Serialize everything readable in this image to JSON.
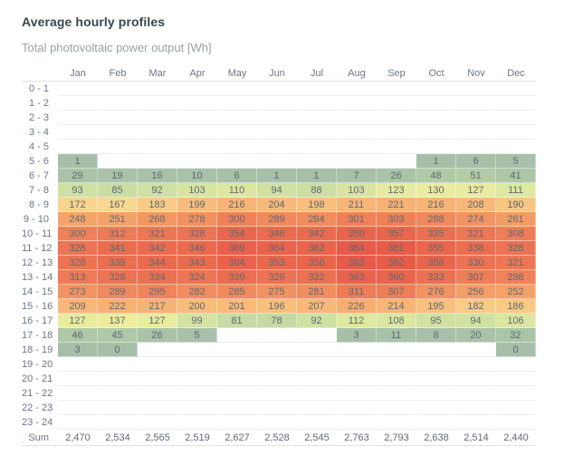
{
  "header": {
    "title": "Average hourly profiles",
    "subtitle": "Total photovoltaic power output [Wh]"
  },
  "colors": {
    "title_text": "#37474f",
    "subtitle_text": "#9aa0a6",
    "axis_text": "#6b7685",
    "cell_text": "#5c6771",
    "gridline": "#ededed",
    "header_line": "#e2e2e2",
    "heat_low": "#a7bfa9",
    "heat_mid": "#eeee9d",
    "heat_high": "#e75a49"
  },
  "chart_data": {
    "type": "heatmap",
    "title": "Average hourly profiles",
    "subtitle": "Total photovoltaic power output [Wh]",
    "unit": "Wh",
    "legend_position": "none",
    "grid": true,
    "value_range": [
      0,
      384
    ],
    "columns": [
      "Jan",
      "Feb",
      "Mar",
      "Apr",
      "May",
      "Jun",
      "Jul",
      "Aug",
      "Sep",
      "Oct",
      "Nov",
      "Dec"
    ],
    "rows": [
      "0 - 1",
      "1 - 2",
      "2 - 3",
      "3 - 4",
      "4 - 5",
      "5 - 6",
      "6 - 7",
      "7 - 8",
      "8 - 9",
      "9 - 10",
      "10 - 11",
      "11 - 12",
      "12 - 13",
      "13 - 14",
      "14 - 15",
      "15 - 16",
      "16 - 17",
      "17 - 18",
      "18 - 19",
      "19 - 20",
      "20 - 21",
      "21 - 22",
      "22 - 23",
      "23 - 24"
    ],
    "values": [
      [
        null,
        null,
        null,
        null,
        null,
        null,
        null,
        null,
        null,
        null,
        null,
        null
      ],
      [
        null,
        null,
        null,
        null,
        null,
        null,
        null,
        null,
        null,
        null,
        null,
        null
      ],
      [
        null,
        null,
        null,
        null,
        null,
        null,
        null,
        null,
        null,
        null,
        null,
        null
      ],
      [
        null,
        null,
        null,
        null,
        null,
        null,
        null,
        null,
        null,
        null,
        null,
        null
      ],
      [
        null,
        null,
        null,
        null,
        null,
        null,
        null,
        null,
        null,
        null,
        null,
        null
      ],
      [
        1,
        null,
        null,
        null,
        null,
        null,
        null,
        null,
        null,
        1,
        6,
        5
      ],
      [
        29,
        19,
        16,
        10,
        6,
        1,
        1,
        7,
        26,
        48,
        51,
        41
      ],
      [
        93,
        85,
        92,
        103,
        110,
        94,
        88,
        103,
        123,
        130,
        127,
        111
      ],
      [
        172,
        167,
        183,
        199,
        216,
        204,
        198,
        211,
        221,
        216,
        208,
        190
      ],
      [
        248,
        251,
        268,
        278,
        300,
        289,
        284,
        301,
        303,
        288,
        274,
        261
      ],
      [
        300,
        312,
        321,
        328,
        354,
        346,
        342,
        359,
        357,
        335,
        321,
        308
      ],
      [
        328,
        341,
        342,
        346,
        369,
        364,
        362,
        384,
        381,
        355,
        338,
        328
      ],
      [
        328,
        339,
        344,
        343,
        364,
        353,
        356,
        383,
        382,
        358,
        330,
        321
      ],
      [
        313,
        328,
        334,
        324,
        339,
        329,
        332,
        363,
        360,
        333,
        307,
        298
      ],
      [
        273,
        289,
        295,
        282,
        285,
        275,
        281,
        311,
        307,
        276,
        256,
        252
      ],
      [
        209,
        222,
        217,
        200,
        201,
        196,
        207,
        226,
        214,
        195,
        182,
        186
      ],
      [
        127,
        137,
        127,
        99,
        81,
        78,
        92,
        112,
        108,
        95,
        94,
        106
      ],
      [
        46,
        45,
        26,
        5,
        null,
        null,
        null,
        3,
        11,
        8,
        20,
        32
      ],
      [
        3,
        0,
        null,
        null,
        null,
        null,
        null,
        null,
        null,
        null,
        null,
        0
      ],
      [
        null,
        null,
        null,
        null,
        null,
        null,
        null,
        null,
        null,
        null,
        null,
        null
      ],
      [
        null,
        null,
        null,
        null,
        null,
        null,
        null,
        null,
        null,
        null,
        null,
        null
      ],
      [
        null,
        null,
        null,
        null,
        null,
        null,
        null,
        null,
        null,
        null,
        null,
        null
      ],
      [
        null,
        null,
        null,
        null,
        null,
        null,
        null,
        null,
        null,
        null,
        null,
        null
      ],
      [
        null,
        null,
        null,
        null,
        null,
        null,
        null,
        null,
        null,
        null,
        null,
        null
      ]
    ],
    "sum_label": "Sum",
    "sums": [
      "2,470",
      "2,534",
      "2,565",
      "2,519",
      "2,627",
      "2,528",
      "2,545",
      "2,763",
      "2,793",
      "2,638",
      "2,514",
      "2,440"
    ],
    "color_scale": {
      "stops": [
        {
          "v": 0,
          "c": "#a7bfa9"
        },
        {
          "v": 40,
          "c": "#abc5a8"
        },
        {
          "v": 75,
          "c": "#c3d8a5"
        },
        {
          "v": 105,
          "c": "#d9e6a1"
        },
        {
          "v": 135,
          "c": "#eeee9d"
        },
        {
          "v": 170,
          "c": "#f8d68f"
        },
        {
          "v": 200,
          "c": "#f8bc7c"
        },
        {
          "v": 255,
          "c": "#f3a067"
        },
        {
          "v": 300,
          "c": "#ef815a"
        },
        {
          "v": 345,
          "c": "#ea6b4f"
        },
        {
          "v": 384,
          "c": "#e75a49"
        }
      ]
    }
  }
}
